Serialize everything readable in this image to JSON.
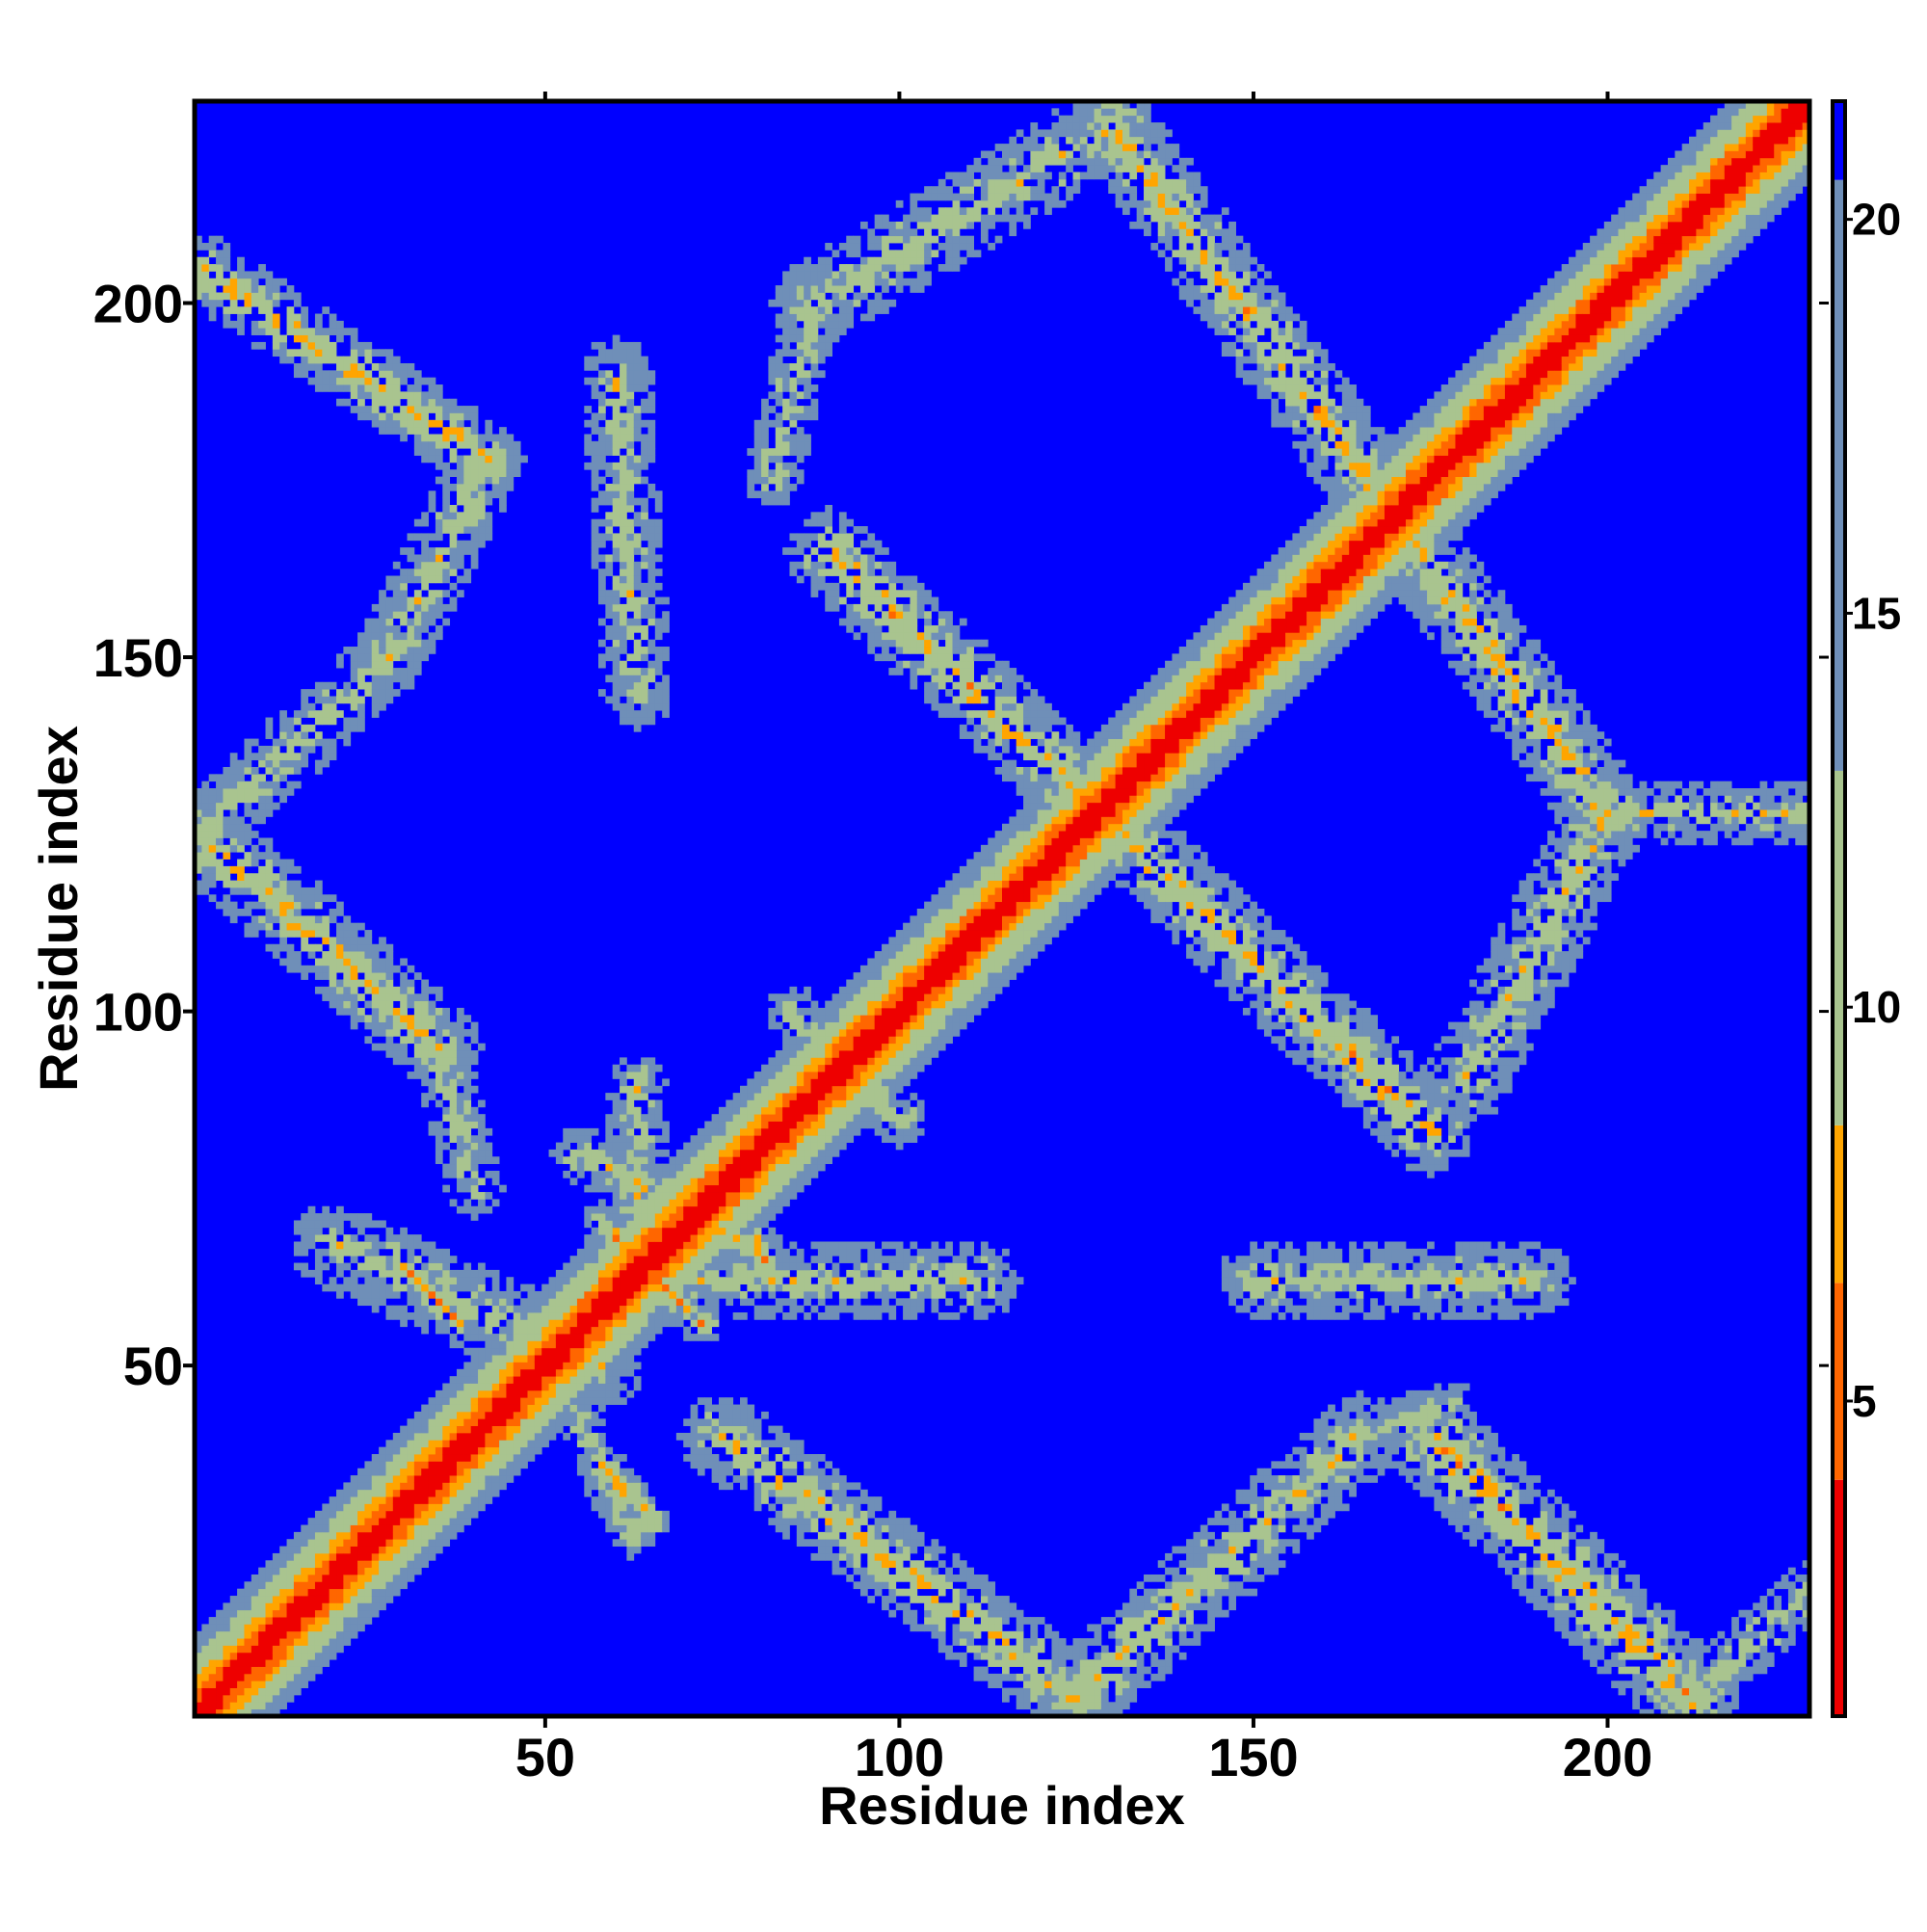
{
  "chart_data": {
    "type": "heatmap",
    "title": "",
    "xlabel": "Residue index",
    "ylabel": "Residue index",
    "xlim": [
      1,
      228
    ],
    "ylim": [
      1,
      228
    ],
    "x_ticks": [
      50,
      100,
      150,
      200
    ],
    "y_ticks": [
      50,
      100,
      150,
      200
    ],
    "grid": false,
    "colorbar": {
      "range": [
        1,
        21.5
      ],
      "ticks": [
        5,
        10,
        15,
        20
      ],
      "colors": [
        "#ee0000",
        "#ff6600",
        "#ffa500",
        "#a9c48f",
        "#6f8fb8",
        "#0000ff"
      ],
      "color_breaks": [
        4,
        6.5,
        8.5,
        13,
        20.5
      ]
    },
    "background_value": 21.5,
    "diagonal_band": {
      "i_start": 1,
      "i_end": 228,
      "half_width": 11
    },
    "contact_bands": [
      {
        "from": [
          1,
          205
        ],
        "to": [
          42,
          178
        ],
        "width": 5,
        "strength": 0.75
      },
      {
        "from": [
          42,
          178
        ],
        "to": [
          28,
          150
        ],
        "width": 5,
        "strength": 0.5
      },
      {
        "from": [
          28,
          150
        ],
        "to": [
          1,
          125
        ],
        "width": 5,
        "strength": 0.5
      },
      {
        "from": [
          1,
          125
        ],
        "to": [
          35,
          95
        ],
        "width": 6,
        "strength": 0.7
      },
      {
        "from": [
          35,
          95
        ],
        "to": [
          40,
          75
        ],
        "width": 4,
        "strength": 0.45
      },
      {
        "from": [
          20,
          67
        ],
        "to": [
          58,
          50
        ],
        "width": 6,
        "strength": 0.55
      },
      {
        "from": [
          30,
          64
        ],
        "to": [
          38,
          56
        ],
        "width": 2,
        "strength": 1.0
      },
      {
        "from": [
          58,
          36
        ],
        "to": [
          65,
          28
        ],
        "width": 3,
        "strength": 0.9
      },
      {
        "from": [
          52,
          48
        ],
        "to": [
          62,
          26
        ],
        "width": 3,
        "strength": 0.45
      },
      {
        "from": [
          58,
          70
        ],
        "to": [
          72,
          56
        ],
        "width": 3,
        "strength": 0.85
      },
      {
        "from": [
          55,
          80
        ],
        "to": [
          80,
          66
        ],
        "width": 4,
        "strength": 0.6
      },
      {
        "from": [
          80,
          68
        ],
        "to": [
          82,
          62
        ],
        "width": 2,
        "strength": 0.9
      },
      {
        "from": [
          63,
          90
        ],
        "to": [
          63,
          60
        ],
        "width": 4,
        "strength": 0.55
      },
      {
        "from": [
          70,
          62
        ],
        "to": [
          112,
          62
        ],
        "width": 5,
        "strength": 0.5
      },
      {
        "from": [
          150,
          62
        ],
        "to": [
          190,
          62
        ],
        "width": 5,
        "strength": 0.5
      },
      {
        "from": [
          60,
          190
        ],
        "to": [
          63,
          145
        ],
        "width": 5,
        "strength": 0.5
      },
      {
        "from": [
          90,
          165
        ],
        "to": [
          175,
          83
        ],
        "width": 6,
        "strength": 0.75
      },
      {
        "from": [
          130,
          225
        ],
        "to": [
          200,
          128
        ],
        "width": 6,
        "strength": 0.75
      },
      {
        "from": [
          88,
          200
        ],
        "to": [
          130,
          225
        ],
        "width": 6,
        "strength": 0.5
      },
      {
        "from": [
          82,
          175
        ],
        "to": [
          88,
          200
        ],
        "width": 4,
        "strength": 0.45
      },
      {
        "from": [
          200,
          128
        ],
        "to": [
          180,
          90
        ],
        "width": 6,
        "strength": 0.55
      },
      {
        "from": [
          175,
          40
        ],
        "to": [
          212,
          3
        ],
        "width": 7,
        "strength": 0.75
      },
      {
        "from": [
          75,
          40
        ],
        "to": [
          125,
          3
        ],
        "width": 6,
        "strength": 0.7
      },
      {
        "from": [
          125,
          3
        ],
        "to": [
          165,
          40
        ],
        "width": 6,
        "strength": 0.6
      },
      {
        "from": [
          165,
          40
        ],
        "to": [
          178,
          45
        ],
        "width": 3,
        "strength": 0.55
      },
      {
        "from": [
          212,
          3
        ],
        "to": [
          228,
          18
        ],
        "width": 4,
        "strength": 0.45
      },
      {
        "from": [
          200,
          128
        ],
        "to": [
          228,
          128
        ],
        "width": 4,
        "strength": 0.5
      },
      {
        "from": [
          85,
          100
        ],
        "to": [
          100,
          85
        ],
        "width": 4,
        "strength": 0.45
      }
    ]
  }
}
